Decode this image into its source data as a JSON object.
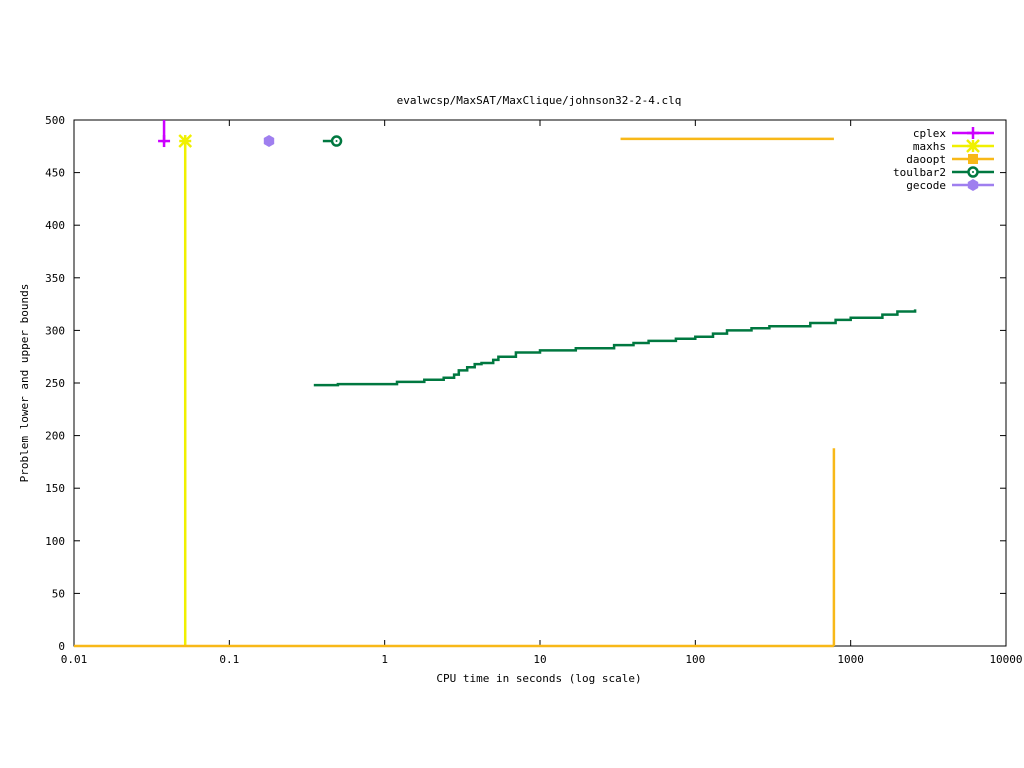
{
  "chart_data": {
    "type": "line",
    "title": "evalwcsp/MaxSAT/MaxClique/johnson32-2-4.clq",
    "xlabel": "CPU time in seconds (log scale)",
    "ylabel": "Problem lower and upper bounds",
    "xscale": "log",
    "xlim": [
      0.01,
      10000
    ],
    "ylim": [
      0,
      500
    ],
    "xticks": [
      {
        "value": 0.01,
        "label": "0.01"
      },
      {
        "value": 0.1,
        "label": "0.1"
      },
      {
        "value": 1,
        "label": "1"
      },
      {
        "value": 10,
        "label": "10"
      },
      {
        "value": 100,
        "label": "100"
      },
      {
        "value": 1000,
        "label": "1000"
      },
      {
        "value": 10000,
        "label": "10000"
      }
    ],
    "yticks": [
      {
        "value": 0,
        "label": "0"
      },
      {
        "value": 50,
        "label": "50"
      },
      {
        "value": 100,
        "label": "100"
      },
      {
        "value": 150,
        "label": "150"
      },
      {
        "value": 200,
        "label": "200"
      },
      {
        "value": 250,
        "label": "250"
      },
      {
        "value": 300,
        "label": "300"
      },
      {
        "value": 350,
        "label": "350"
      },
      {
        "value": 400,
        "label": "400"
      },
      {
        "value": 450,
        "label": "450"
      },
      {
        "value": 500,
        "label": "500"
      }
    ],
    "grid": false,
    "legend_position": "top-right",
    "series": [
      {
        "name": "cplex",
        "color": "#cc00ff",
        "marker": "plus",
        "lines": [
          {
            "kind": "vline",
            "x": 0.038,
            "y": [
              478,
              500
            ]
          }
        ],
        "points": [
          {
            "x": 0.038,
            "y": 480
          }
        ]
      },
      {
        "name": "maxhs",
        "color": "#f0f000",
        "marker": "star",
        "lines": [
          {
            "kind": "vline",
            "x": 0.052,
            "y": [
              0,
              480
            ]
          }
        ],
        "points": [
          {
            "x": 0.052,
            "y": 480
          }
        ]
      },
      {
        "name": "daoopt",
        "color": "#f8b818",
        "marker": "square",
        "lines": [
          {
            "kind": "hline",
            "y": 482,
            "x": [
              33,
              780
            ]
          },
          {
            "kind": "hline",
            "y": 0,
            "x": [
              0.01,
              780
            ]
          },
          {
            "kind": "vline",
            "x": 780,
            "y": [
              0,
              188
            ]
          }
        ],
        "points": []
      },
      {
        "name": "toulbar2",
        "color": "#007840",
        "marker": "circle",
        "lines": [
          {
            "kind": "hline",
            "y": 480,
            "x": [
              0.4,
              0.49
            ]
          }
        ],
        "points": [
          {
            "x": 0.49,
            "y": 480
          }
        ],
        "steps": [
          {
            "x": 0.35,
            "y": 248
          },
          {
            "x": 0.5,
            "y": 249
          },
          {
            "x": 1.2,
            "y": 251
          },
          {
            "x": 1.8,
            "y": 253
          },
          {
            "x": 2.4,
            "y": 255
          },
          {
            "x": 2.8,
            "y": 258
          },
          {
            "x": 3.0,
            "y": 262
          },
          {
            "x": 3.4,
            "y": 265
          },
          {
            "x": 3.8,
            "y": 268
          },
          {
            "x": 4.2,
            "y": 269
          },
          {
            "x": 5.0,
            "y": 272
          },
          {
            "x": 5.4,
            "y": 275
          },
          {
            "x": 7.0,
            "y": 279
          },
          {
            "x": 10,
            "y": 281
          },
          {
            "x": 17,
            "y": 283
          },
          {
            "x": 30,
            "y": 286
          },
          {
            "x": 40,
            "y": 288
          },
          {
            "x": 50,
            "y": 290
          },
          {
            "x": 75,
            "y": 292
          },
          {
            "x": 100,
            "y": 294
          },
          {
            "x": 130,
            "y": 297
          },
          {
            "x": 160,
            "y": 300
          },
          {
            "x": 230,
            "y": 302
          },
          {
            "x": 300,
            "y": 304
          },
          {
            "x": 550,
            "y": 307
          },
          {
            "x": 800,
            "y": 310
          },
          {
            "x": 1000,
            "y": 312
          },
          {
            "x": 1600,
            "y": 315
          },
          {
            "x": 2000,
            "y": 318
          },
          {
            "x": 2600,
            "y": 320
          }
        ]
      },
      {
        "name": "gecode",
        "color": "#9f7fef",
        "marker": "hexagon",
        "lines": [],
        "points": [
          {
            "x": 0.18,
            "y": 480
          }
        ]
      }
    ]
  }
}
